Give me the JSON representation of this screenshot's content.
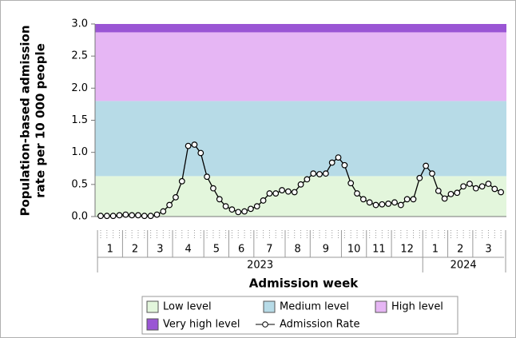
{
  "chart_data": {
    "type": "line",
    "x_label": "Admission week",
    "y_label": [
      "Population-based admission",
      "rate per 10 000 people"
    ],
    "ylim": [
      0,
      3
    ],
    "yticks": [
      {
        "value": 0,
        "label": "0.0"
      },
      {
        "value": 0.5,
        "label": "0.5"
      },
      {
        "value": 1,
        "label": "1.0"
      },
      {
        "value": 1.5,
        "label": "1.5"
      },
      {
        "value": 2,
        "label": "2.0"
      },
      {
        "value": 2.5,
        "label": "2.5"
      },
      {
        "value": 3,
        "label": "3.0"
      }
    ],
    "bands": [
      {
        "name": "Low level",
        "from": 0,
        "to": 0.63,
        "color": "#e3f6dc"
      },
      {
        "name": "Medium level",
        "from": 0.63,
        "to": 1.8,
        "color": "#b7dbe7"
      },
      {
        "name": "High level",
        "from": 1.8,
        "to": 2.87,
        "color": "#e6b6f4"
      },
      {
        "name": "Very high level",
        "from": 2.87,
        "to": 3,
        "color": "#9a55d4"
      }
    ],
    "months": [
      {
        "label": "1",
        "weeks": 4
      },
      {
        "label": "2",
        "weeks": 4
      },
      {
        "label": "3",
        "weeks": 4
      },
      {
        "label": "4",
        "weeks": 5
      },
      {
        "label": "5",
        "weeks": 4
      },
      {
        "label": "6",
        "weeks": 4
      },
      {
        "label": "7",
        "weeks": 5
      },
      {
        "label": "8",
        "weeks": 4
      },
      {
        "label": "9",
        "weeks": 5
      },
      {
        "label": "10",
        "weeks": 4
      },
      {
        "label": "11",
        "weeks": 4
      },
      {
        "label": "12",
        "weeks": 5
      },
      {
        "label": "1",
        "weeks": 4
      },
      {
        "label": "2",
        "weeks": 4
      },
      {
        "label": "3",
        "weeks": 5
      }
    ],
    "years": [
      {
        "label": "2023",
        "months": 12
      },
      {
        "label": "2024",
        "months": 3
      }
    ],
    "series": [
      {
        "name": "Admission Rate",
        "color": "#000000",
        "values": [
          0.01,
          0.01,
          0.01,
          0.02,
          0.03,
          0.02,
          0.02,
          0.01,
          0.01,
          0.03,
          0.08,
          0.18,
          0.3,
          0.55,
          1.1,
          1.12,
          0.99,
          0.62,
          0.44,
          0.27,
          0.16,
          0.11,
          0.07,
          0.08,
          0.12,
          0.16,
          0.25,
          0.36,
          0.36,
          0.41,
          0.39,
          0.38,
          0.5,
          0.58,
          0.67,
          0.66,
          0.67,
          0.84,
          0.92,
          0.8,
          0.52,
          0.36,
          0.27,
          0.22,
          0.18,
          0.19,
          0.2,
          0.22,
          0.18,
          0.27,
          0.27,
          0.6,
          0.79,
          0.67,
          0.4,
          0.28,
          0.35,
          0.37,
          0.47,
          0.51,
          0.44,
          0.47,
          0.51,
          0.43,
          0.38
        ]
      }
    ]
  }
}
